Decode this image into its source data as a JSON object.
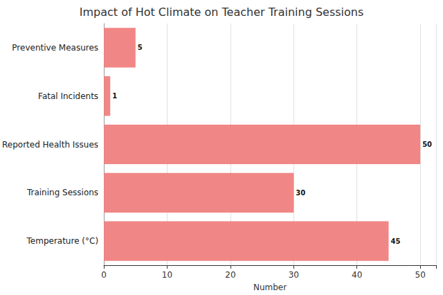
{
  "chart_data": {
    "type": "bar",
    "title": "Impact of Hot Climate on Teacher Training Sessions",
    "orientation": "horizontal",
    "categories": [
      "Temperature (°C)",
      "Training Sessions",
      "Reported Health Issues",
      "Fatal Incidents",
      "Preventive Measures"
    ],
    "values": [
      45,
      30,
      50,
      1,
      5
    ],
    "color": "#f08080",
    "x_label": "Number",
    "xlim": [
      0,
      52.5
    ],
    "xticks": [
      0,
      10,
      20,
      30,
      40,
      50
    ],
    "grid": true,
    "data_labels": true
  }
}
